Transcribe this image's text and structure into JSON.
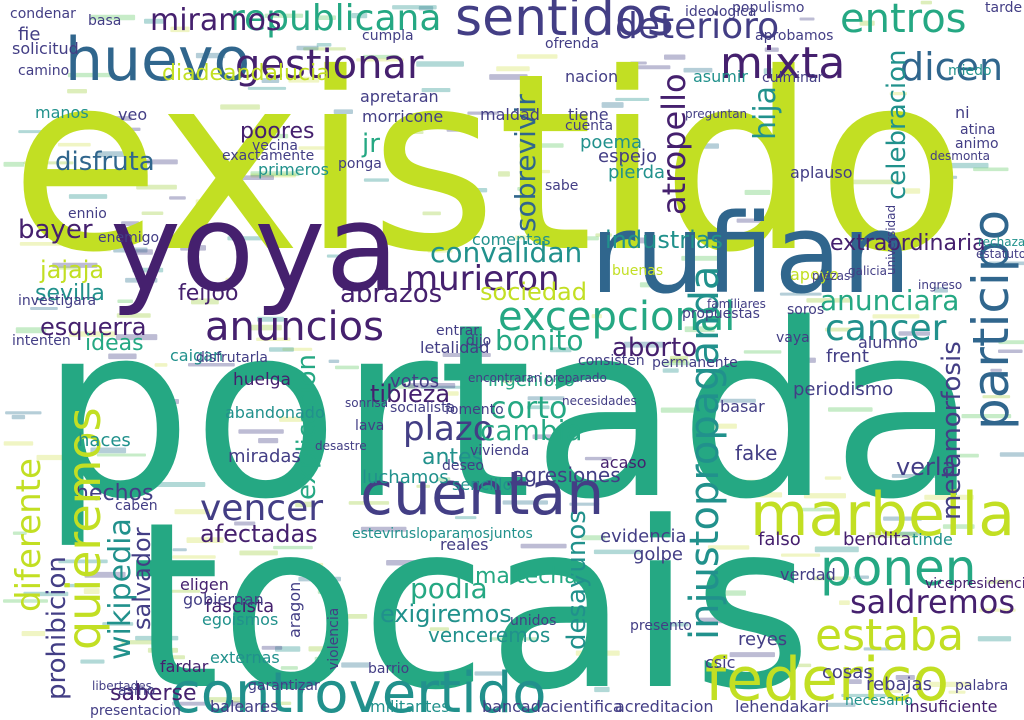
{
  "word_cloud": {
    "palette": {
      "purple": "#45206e",
      "indigo": "#433e85",
      "blue": "#30668d",
      "teal": "#21918c",
      "green": "#25a883",
      "lime": "#c2df23",
      "pale": "#d4e157"
    },
    "words": [
      {
        "text": "existido",
        "color": "lime"
      },
      {
        "text": "portada",
        "color": "green"
      },
      {
        "text": "tocais",
        "color": "green"
      },
      {
        "text": "yoya",
        "color": "purple"
      },
      {
        "text": "rufian",
        "color": "blue"
      },
      {
        "text": "huevo",
        "color": "blue"
      },
      {
        "text": "sentidos",
        "color": "indigo"
      },
      {
        "text": "gestionar",
        "color": "purple"
      },
      {
        "text": "mixta",
        "color": "purple"
      },
      {
        "text": "entros",
        "color": "green"
      },
      {
        "text": "dicen",
        "color": "blue"
      },
      {
        "text": "republicana",
        "color": "green"
      },
      {
        "text": "miramos",
        "color": "purple"
      },
      {
        "text": "deterioro",
        "color": "indigo"
      },
      {
        "text": "cuentan",
        "color": "indigo"
      },
      {
        "text": "controvertido",
        "color": "teal"
      },
      {
        "text": "federico",
        "color": "lime"
      },
      {
        "text": "marbella",
        "color": "lime"
      },
      {
        "text": "ponen",
        "color": "green"
      },
      {
        "text": "estaba",
        "color": "lime"
      },
      {
        "text": "saldremos",
        "color": "purple"
      },
      {
        "text": "participo",
        "color": "blue"
      },
      {
        "text": "excepcional",
        "color": "green"
      },
      {
        "text": "cancer",
        "color": "teal"
      },
      {
        "text": "anunciara",
        "color": "green"
      },
      {
        "text": "anuncios",
        "color": "purple"
      },
      {
        "text": "convalidan",
        "color": "teal"
      },
      {
        "text": "murieron",
        "color": "purple"
      },
      {
        "text": "vencer",
        "color": "indigo"
      },
      {
        "text": "afectadas",
        "color": "purple"
      },
      {
        "text": "hechos",
        "color": "indigo"
      },
      {
        "text": "quieremos",
        "color": "lime"
      },
      {
        "text": "diferente",
        "color": "lime"
      },
      {
        "text": "wikipedia",
        "color": "teal"
      },
      {
        "text": "prohibicion",
        "color": "indigo"
      },
      {
        "text": "injustopropaganda",
        "color": "teal"
      },
      {
        "text": "podia",
        "color": "green"
      },
      {
        "text": "desayunos",
        "color": "teal"
      },
      {
        "text": "plazo",
        "color": "indigo"
      },
      {
        "text": "tibieza",
        "color": "purple"
      },
      {
        "text": "corto",
        "color": "green"
      },
      {
        "text": "cambia",
        "color": "green"
      },
      {
        "text": "bonito",
        "color": "green"
      },
      {
        "text": "aborto",
        "color": "purple"
      },
      {
        "text": "abrazos",
        "color": "purple"
      },
      {
        "text": "sociedad",
        "color": "lime"
      },
      {
        "text": "industrias",
        "color": "teal"
      },
      {
        "text": "extraordinaria",
        "color": "purple"
      },
      {
        "text": "celebracion",
        "color": "teal"
      },
      {
        "text": "atropello",
        "color": "purple"
      },
      {
        "text": "disfruta",
        "color": "blue"
      },
      {
        "text": "poores",
        "color": "purple"
      },
      {
        "text": "jajaja",
        "color": "lime"
      },
      {
        "text": "bayer",
        "color": "purple"
      },
      {
        "text": "sevilla",
        "color": "teal"
      },
      {
        "text": "esquerra",
        "color": "purple"
      },
      {
        "text": "feijoo",
        "color": "purple"
      },
      {
        "text": "diadeandalucia",
        "color": "lime"
      },
      {
        "text": "ideas",
        "color": "green"
      },
      {
        "text": "salvador",
        "color": "indigo"
      },
      {
        "text": "saberse",
        "color": "purple"
      },
      {
        "text": "metamorfosis",
        "color": "indigo"
      },
      {
        "text": "explicacion",
        "color": "green"
      },
      {
        "text": "maltecha",
        "color": "green"
      },
      {
        "text": "exigiremos",
        "color": "teal"
      },
      {
        "text": "venceremos",
        "color": "teal"
      },
      {
        "text": "fascista",
        "color": "purple"
      },
      {
        "text": "votos",
        "color": "indigo"
      },
      {
        "text": "ingenioso",
        "color": "green"
      },
      {
        "text": "fake",
        "color": "indigo"
      },
      {
        "text": "antes",
        "color": "teal"
      },
      {
        "text": "haces",
        "color": "teal"
      },
      {
        "text": "miradas",
        "color": "indigo"
      },
      {
        "text": "huelga",
        "color": "purple"
      },
      {
        "text": "jr",
        "color": "green"
      },
      {
        "text": "hija",
        "color": "teal"
      },
      {
        "text": "poema",
        "color": "teal"
      },
      {
        "text": "espejo",
        "color": "indigo"
      },
      {
        "text": "letalidad",
        "color": "indigo"
      },
      {
        "text": "sencillo",
        "color": "teal"
      },
      {
        "text": "reales",
        "color": "indigo"
      },
      {
        "text": "evidencia",
        "color": "indigo"
      },
      {
        "text": "golpe",
        "color": "indigo"
      },
      {
        "text": "falso",
        "color": "purple"
      },
      {
        "text": "tinde",
        "color": "teal"
      },
      {
        "text": "luchamos",
        "color": "teal"
      },
      {
        "text": "sobrevivir",
        "color": "blue"
      },
      {
        "text": "basar",
        "color": "indigo"
      },
      {
        "text": "periodismo",
        "color": "indigo"
      },
      {
        "text": "acaso",
        "color": "purple"
      },
      {
        "text": "agresiones",
        "color": "indigo"
      },
      {
        "text": "rebajas",
        "color": "indigo"
      },
      {
        "text": "reyes",
        "color": "indigo"
      },
      {
        "text": "bendita",
        "color": "purple"
      },
      {
        "text": "eligen",
        "color": "purple"
      },
      {
        "text": "gobiernan",
        "color": "indigo"
      },
      {
        "text": "verla",
        "color": "indigo"
      },
      {
        "text": "cosas",
        "color": "indigo"
      },
      {
        "text": "fardar",
        "color": "purple"
      },
      {
        "text": "baleares",
        "color": "indigo"
      },
      {
        "text": "militantes",
        "color": "teal"
      },
      {
        "text": "bancada",
        "color": "indigo"
      },
      {
        "text": "cientifica",
        "color": "indigo"
      },
      {
        "text": "acreditacion",
        "color": "indigo"
      },
      {
        "text": "lehendakari",
        "color": "indigo"
      },
      {
        "text": "insuficiente",
        "color": "purple"
      },
      {
        "text": "necesario",
        "color": "teal"
      },
      {
        "text": "vicepresidencia",
        "color": "purple"
      },
      {
        "text": "presentacion",
        "color": "indigo"
      },
      {
        "text": "nacion",
        "color": "indigo"
      },
      {
        "text": "verdad",
        "color": "indigo"
      },
      {
        "text": "pierda",
        "color": "teal"
      },
      {
        "text": "aplauso",
        "color": "indigo"
      },
      {
        "text": "frent",
        "color": "indigo"
      },
      {
        "text": "alumno",
        "color": "indigo"
      },
      {
        "text": "camino",
        "color": "indigo"
      },
      {
        "text": "condenar",
        "color": "indigo"
      },
      {
        "text": "solicitud",
        "color": "indigo"
      },
      {
        "text": "fie",
        "color": "indigo"
      },
      {
        "text": "manos",
        "color": "teal"
      },
      {
        "text": "veo",
        "color": "indigo"
      },
      {
        "text": "maldad",
        "color": "indigo"
      },
      {
        "text": "tiene",
        "color": "indigo"
      },
      {
        "text": "apretaran",
        "color": "indigo"
      },
      {
        "text": "morricone",
        "color": "indigo"
      },
      {
        "text": "cuenta",
        "color": "indigo"
      },
      {
        "text": "sabe",
        "color": "indigo"
      },
      {
        "text": "ponga",
        "color": "indigo"
      },
      {
        "text": "comentas",
        "color": "teal"
      },
      {
        "text": "entrar",
        "color": "indigo"
      },
      {
        "text": "dijo",
        "color": "indigo"
      },
      {
        "text": "consisten",
        "color": "indigo"
      },
      {
        "text": "encontraran",
        "color": "indigo"
      },
      {
        "text": "necesidades",
        "color": "indigo"
      },
      {
        "text": "abandonado",
        "color": "teal"
      },
      {
        "text": "caben",
        "color": "indigo"
      },
      {
        "text": "asino",
        "color": "indigo"
      },
      {
        "text": "barrio",
        "color": "indigo"
      },
      {
        "text": "garantizar",
        "color": "indigo"
      },
      {
        "text": "externas",
        "color": "teal"
      },
      {
        "text": "presento",
        "color": "indigo"
      },
      {
        "text": "csic",
        "color": "indigo"
      },
      {
        "text": "estevirusloparamosjuntos",
        "color": "teal"
      },
      {
        "text": "populismo",
        "color": "indigo"
      },
      {
        "text": "ideologica",
        "color": "indigo"
      },
      {
        "text": "tarde",
        "color": "indigo"
      },
      {
        "text": "basa",
        "color": "indigo"
      },
      {
        "text": "cumpla",
        "color": "indigo"
      },
      {
        "text": "ofrenda",
        "color": "indigo"
      },
      {
        "text": "aprobamos",
        "color": "indigo"
      },
      {
        "text": "miedo",
        "color": "teal"
      },
      {
        "text": "vecina",
        "color": "indigo"
      },
      {
        "text": "exactamente",
        "color": "indigo"
      },
      {
        "text": "primeros",
        "color": "teal"
      },
      {
        "text": "preguntan",
        "color": "indigo"
      },
      {
        "text": "culminar",
        "color": "indigo"
      },
      {
        "text": "asumir",
        "color": "teal"
      },
      {
        "text": "ni",
        "color": "indigo"
      },
      {
        "text": "atina",
        "color": "indigo"
      },
      {
        "text": "animo",
        "color": "indigo"
      },
      {
        "text": "desmonta",
        "color": "indigo"
      },
      {
        "text": "apoyo",
        "color": "lime"
      },
      {
        "text": "buenas",
        "color": "lime"
      },
      {
        "text": "piezas",
        "color": "indigo"
      },
      {
        "text": "galicia",
        "color": "indigo"
      },
      {
        "text": "soros",
        "color": "indigo"
      },
      {
        "text": "propuestas",
        "color": "indigo"
      },
      {
        "text": "familiares",
        "color": "indigo"
      },
      {
        "text": "preparado",
        "color": "indigo"
      },
      {
        "text": "permanente",
        "color": "indigo"
      },
      {
        "text": "vaya",
        "color": "indigo"
      },
      {
        "text": "caigan",
        "color": "teal"
      },
      {
        "text": "disfrutarla",
        "color": "indigo"
      },
      {
        "text": "intenten",
        "color": "indigo"
      },
      {
        "text": "investigara",
        "color": "indigo"
      },
      {
        "text": "enemigo",
        "color": "indigo"
      },
      {
        "text": "ennio",
        "color": "indigo"
      },
      {
        "text": "sonrisa",
        "color": "indigo"
      },
      {
        "text": "socialista",
        "color": "indigo"
      },
      {
        "text": "fomento",
        "color": "indigo"
      },
      {
        "text": "lava",
        "color": "indigo"
      },
      {
        "text": "desastre",
        "color": "indigo"
      },
      {
        "text": "deseo",
        "color": "indigo"
      },
      {
        "text": "vivienda",
        "color": "indigo"
      },
      {
        "text": "egoismos",
        "color": "teal"
      },
      {
        "text": "violencia",
        "color": "indigo"
      },
      {
        "text": "aragon",
        "color": "indigo"
      },
      {
        "text": "unidos",
        "color": "indigo"
      },
      {
        "text": "palabra",
        "color": "indigo"
      },
      {
        "text": "libertades",
        "color": "indigo"
      },
      {
        "text": "rechaza",
        "color": "teal"
      },
      {
        "text": "universidad",
        "color": "indigo"
      },
      {
        "text": "estatuto",
        "color": "indigo"
      },
      {
        "text": "ingreso",
        "color": "indigo"
      }
    ]
  }
}
